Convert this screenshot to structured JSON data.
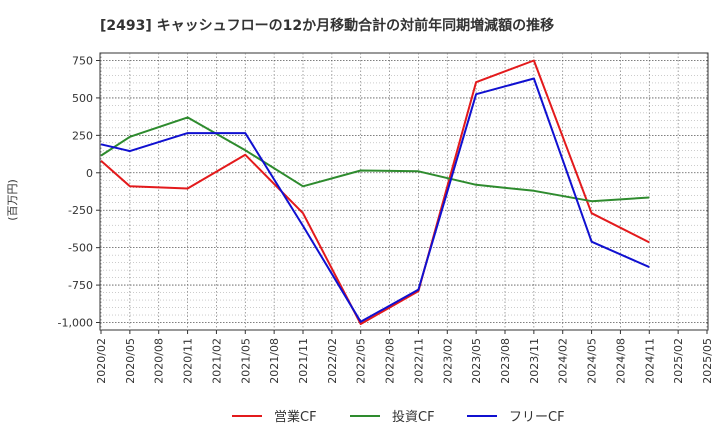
{
  "chart_data": {
    "type": "line",
    "title": "[2493]  キャッシュフローの12か月移動合計の対前年同期増減額の推移",
    "ylabel": "(百万円)",
    "xlabel": "",
    "ylim": [
      -1050,
      800
    ],
    "yticks": [
      750,
      500,
      250,
      0,
      -250,
      -500,
      -750,
      -1000
    ],
    "ytick_labels": [
      "750",
      "500",
      "250",
      "0",
      "-250",
      "-500",
      "-750",
      "-1,000"
    ],
    "categories": [
      "2020/02",
      "2020/05",
      "2020/08",
      "2020/11",
      "2021/02",
      "2021/05",
      "2021/08",
      "2021/11",
      "2022/02",
      "2022/05",
      "2022/08",
      "2022/11",
      "2023/02",
      "2023/05",
      "2023/08",
      "2023/11",
      "2024/02",
      "2024/05",
      "2024/08",
      "2024/11",
      "2025/02",
      "2025/05"
    ],
    "grid": true,
    "legend_position": "bottom",
    "series": [
      {
        "name": "営業CF",
        "color": "#e31a1c",
        "values": [
          80,
          -90,
          null,
          -105,
          null,
          120,
          null,
          -270,
          null,
          -1010,
          null,
          -790,
          null,
          605,
          null,
          750,
          null,
          -270,
          null,
          -465,
          null,
          null
        ]
      },
      {
        "name": "投資CF",
        "color": "#2e8b2e",
        "values": [
          115,
          240,
          null,
          370,
          null,
          150,
          null,
          -90,
          null,
          15,
          null,
          10,
          null,
          -80,
          null,
          -120,
          null,
          -190,
          null,
          -165,
          null,
          null
        ]
      },
      {
        "name": "フリーCF",
        "color": "#1010d0",
        "values": [
          190,
          145,
          null,
          265,
          null,
          265,
          null,
          -355,
          null,
          -995,
          null,
          -780,
          null,
          525,
          null,
          630,
          null,
          -460,
          null,
          -630,
          null,
          null
        ]
      }
    ]
  }
}
